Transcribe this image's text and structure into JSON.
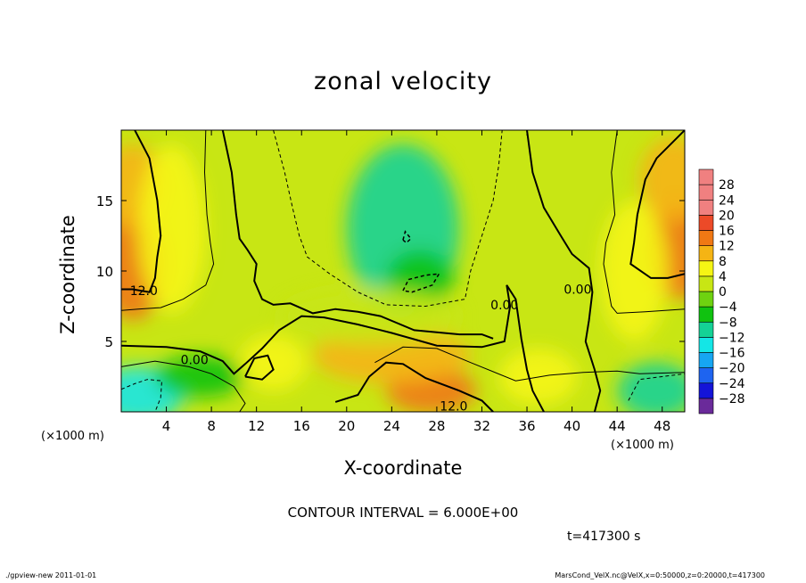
{
  "page": {
    "x_unit": "(×1000 m)",
    "contour_interval": "CONTOUR INTERVAL = 6.000E+00",
    "time_label": "t=417300 s",
    "footer_left": "./gpview-new   2011-01-01",
    "footer_right": "MarsCond_VelX.nc@VelX,x=0:50000,z=0:20000,t=417300"
  },
  "colors": {
    "palette": [
      "#6a2a9a",
      "#1414d8",
      "#1e64f0",
      "#16a6f2",
      "#14e6e6",
      "#14d296",
      "#10c210",
      "#6ed210",
      "#c8e614",
      "#f5f514",
      "#f5b414",
      "#f07814",
      "#ec4a28",
      "#f08080"
    ],
    "contour_line": "#000000"
  },
  "chart_data": {
    "type": "heatmap",
    "title": "zonal velocity",
    "xlabel": "X-coordinate",
    "ylabel": "Z-coordinate",
    "xlim": [
      0,
      50
    ],
    "ylim": [
      0,
      20
    ],
    "x_ticks": [
      4,
      8,
      12,
      16,
      20,
      24,
      28,
      32,
      36,
      40,
      44,
      48
    ],
    "y_ticks": [
      5,
      10,
      15
    ],
    "colorbar": {
      "levels": [
        -32,
        -28,
        -24,
        -20,
        -16,
        -12,
        -8,
        -4,
        0,
        4,
        8,
        12,
        16,
        20,
        24,
        28,
        32
      ],
      "labels": [
        "28",
        "24",
        "20",
        "16",
        "12",
        "8",
        "4",
        "0",
        "−4",
        "−8",
        "−12",
        "−16",
        "−20",
        "−24",
        "−28"
      ]
    },
    "contour_labels": [
      {
        "text": "12.0",
        "x": 2.0,
        "z": 8.6
      },
      {
        "text": "0.00",
        "x": 6.5,
        "z": 3.7
      },
      {
        "text": "0.00",
        "x": 34.0,
        "z": 7.6
      },
      {
        "text": "0.00",
        "x": 40.5,
        "z": 8.7
      },
      {
        "text": "12.0",
        "x": 29.5,
        "z": 0.4
      }
    ],
    "field_features": [
      {
        "x": 1.0,
        "z": 10.5,
        "value": 14,
        "sx": 3.0,
        "sz": 4.0
      },
      {
        "x": 1.0,
        "z": 16.0,
        "value": 10,
        "sx": 3.0,
        "sz": 3.0
      },
      {
        "x": 4.5,
        "z": 13.0,
        "value": 4,
        "sx": 3.0,
        "sz": 6.0
      },
      {
        "x": 49.5,
        "z": 11.5,
        "value": 15,
        "sx": 3.0,
        "sz": 3.5
      },
      {
        "x": 49.0,
        "z": 16.5,
        "value": 10,
        "sx": 3.0,
        "sz": 3.0
      },
      {
        "x": 45.5,
        "z": 10.0,
        "value": 5,
        "sx": 3.0,
        "sz": 5.0
      },
      {
        "x": 25.0,
        "z": 13.0,
        "value": -9,
        "sx": 5.0,
        "sz": 6.0
      },
      {
        "x": 26.5,
        "z": 9.5,
        "value": -8,
        "sx": 3.0,
        "sz": 2.0
      },
      {
        "x": 1.5,
        "z": 1.2,
        "value": -14,
        "sx": 4.0,
        "sz": 2.0
      },
      {
        "x": 7.0,
        "z": 2.5,
        "value": -6,
        "sx": 4.0,
        "sz": 1.5
      },
      {
        "x": 47.5,
        "z": 1.5,
        "value": -11,
        "sx": 3.5,
        "sz": 2.0
      },
      {
        "x": 27.5,
        "z": 1.5,
        "value": 14,
        "sx": 4.0,
        "sz": 1.6
      },
      {
        "x": 24.0,
        "z": 4.0,
        "value": 8,
        "sx": 7.0,
        "sz": 2.0
      },
      {
        "x": 37.0,
        "z": 2.5,
        "value": 6,
        "sx": 3.5,
        "sz": 2.0
      },
      {
        "x": 13.5,
        "z": 3.5,
        "value": 6,
        "sx": 3.0,
        "sz": 2.0
      },
      {
        "x": 22.0,
        "z": 6.8,
        "value": 3,
        "sx": 8.0,
        "sz": 2.0
      }
    ]
  }
}
